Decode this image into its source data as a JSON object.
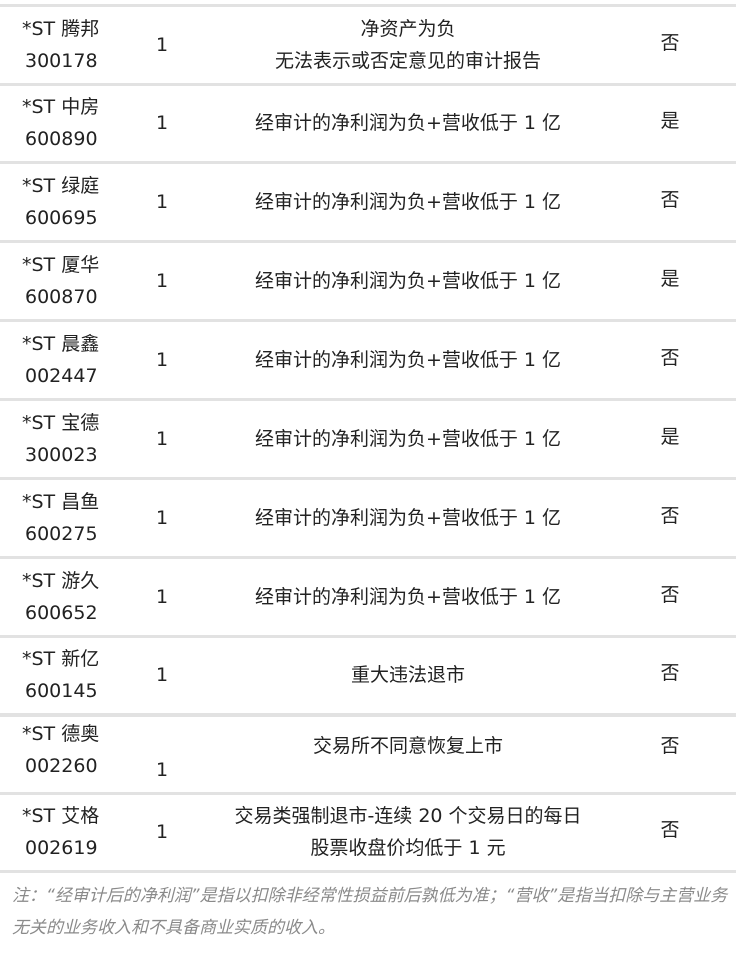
{
  "rows": [
    {
      "name": "*ST 腾邦",
      "code": "300178",
      "count": "1",
      "reason_lines": [
        "净资产为负",
        "无法表示或否定意见的审计报告"
      ],
      "flag": "否"
    },
    {
      "name": "*ST 中房",
      "code": "600890",
      "count": "1",
      "reason_lines": [
        "经审计的净利润为负+营收低于 1 亿"
      ],
      "flag": "是"
    },
    {
      "name": "*ST 绿庭",
      "code": "600695",
      "count": "1",
      "reason_lines": [
        "经审计的净利润为负+营收低于 1 亿"
      ],
      "flag": "否"
    },
    {
      "name": "*ST 厦华",
      "code": "600870",
      "count": "1",
      "reason_lines": [
        "经审计的净利润为负+营收低于 1 亿"
      ],
      "flag": "是"
    },
    {
      "name": "*ST 晨鑫",
      "code": "002447",
      "count": "1",
      "reason_lines": [
        "经审计的净利润为负+营收低于 1 亿"
      ],
      "flag": "否"
    },
    {
      "name": "*ST 宝德",
      "code": "300023",
      "count": "1",
      "reason_lines": [
        "经审计的净利润为负+营收低于 1 亿"
      ],
      "flag": "是"
    },
    {
      "name": "*ST 昌鱼",
      "code": "600275",
      "count": "1",
      "reason_lines": [
        "经审计的净利润为负+营收低于 1 亿"
      ],
      "flag": "否"
    },
    {
      "name": "*ST 游久",
      "code": "600652",
      "count": "1",
      "reason_lines": [
        "经审计的净利润为负+营收低于 1 亿"
      ],
      "flag": "否"
    },
    {
      "name": "*ST 新亿",
      "code": "600145",
      "count": "1",
      "reason_lines": [
        "重大违法退市"
      ],
      "flag": "否"
    },
    {
      "name": "*ST 德奥",
      "code": "002260",
      "count": "1",
      "reason_lines": [
        "交易所不同意恢复上市"
      ],
      "flag": "否"
    },
    {
      "name": "*ST 艾格",
      "code": "002619",
      "count": "1",
      "reason_lines": [
        "交易类强制退市-连续 20 个交易日的每日",
        "股票收盘价均低于 1 元"
      ],
      "flag": "否"
    }
  ],
  "note": "注：“经审计后的净利润”是指以扣除非经常性损益前后孰低为准；“营收”是指当扣除与主营业务无关的业务收入和不具备商业实质的收入。"
}
